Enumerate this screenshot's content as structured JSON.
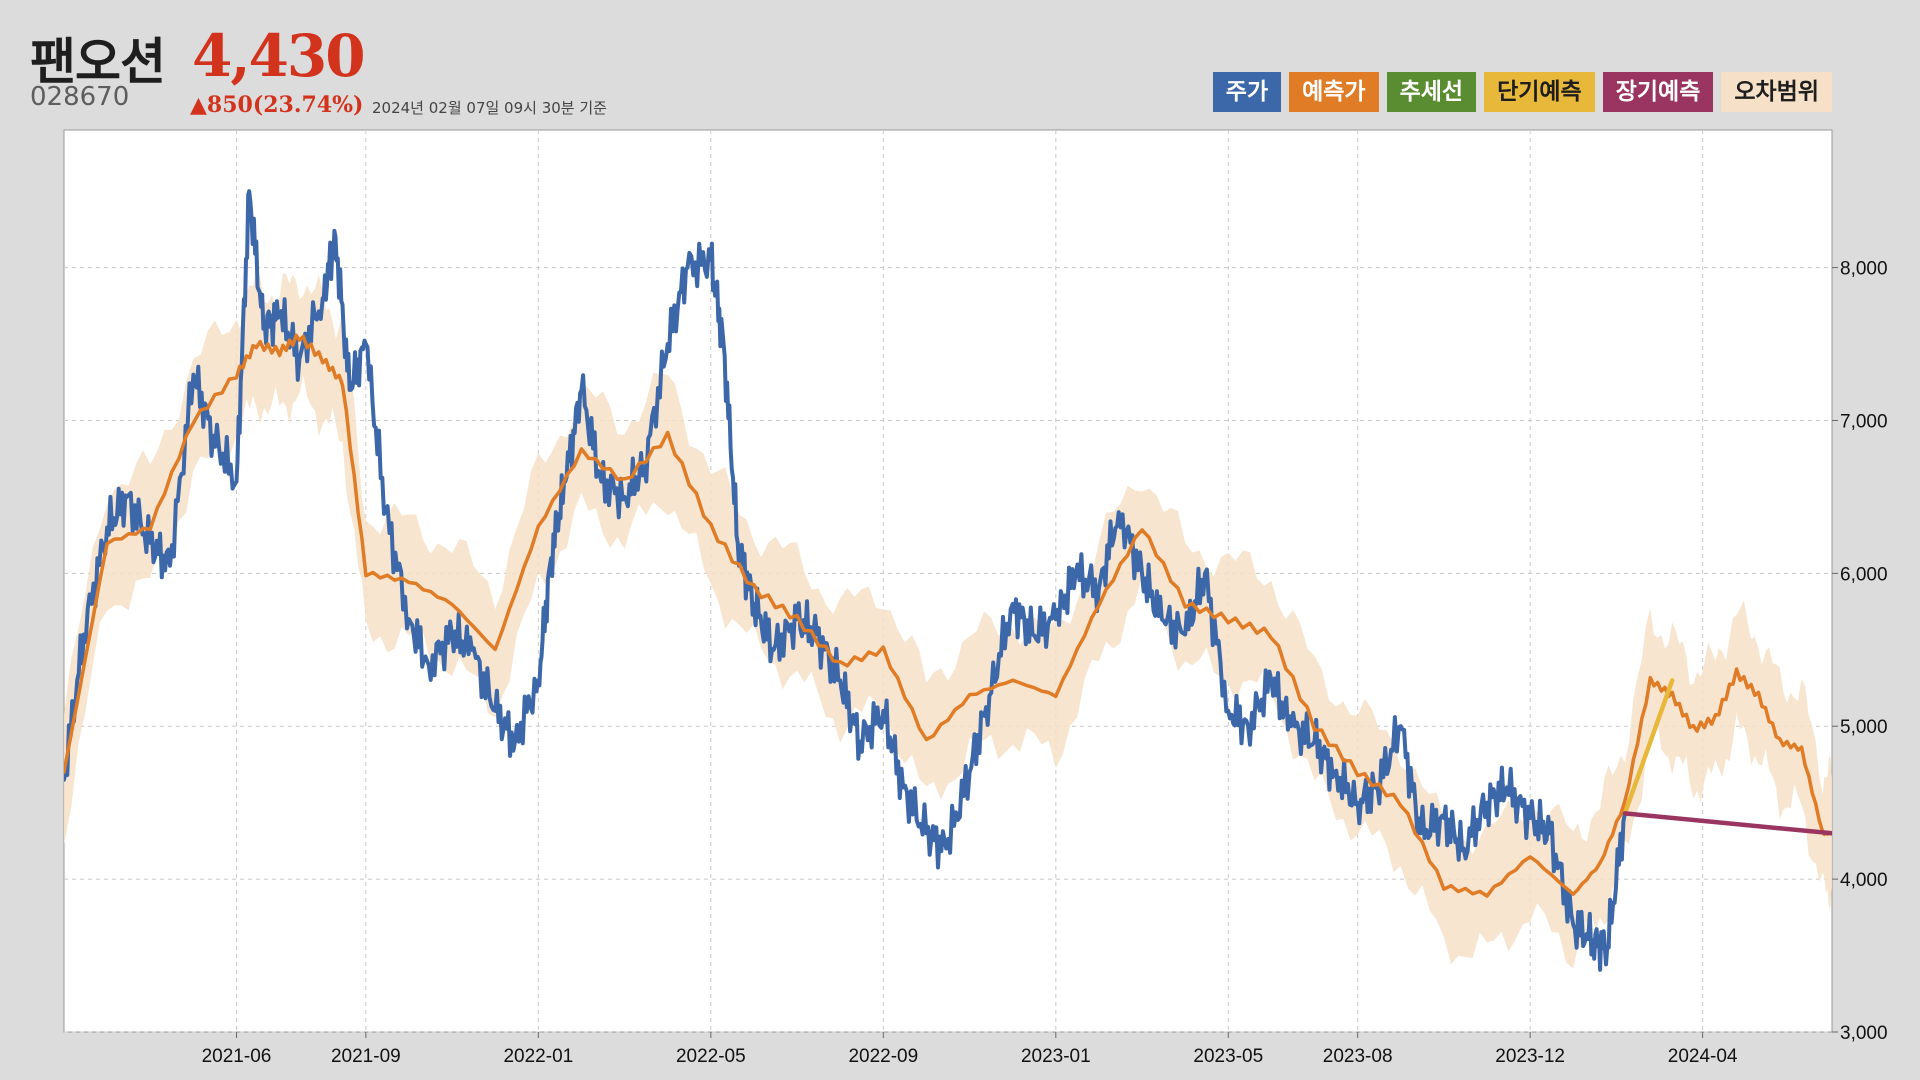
{
  "header": {
    "name": "팬오션",
    "price": "4,430",
    "code": "028670",
    "change": "▲850(23.74%)",
    "timestamp": "2024년 02월 07일 09시 30분 기준"
  },
  "legend": [
    {
      "label": "주가",
      "color": "#3c67a8",
      "text_color": "#ffffff"
    },
    {
      "label": "예측가",
      "color": "#e07b26",
      "text_color": "#ffffff"
    },
    {
      "label": "추세선",
      "color": "#5a8c32",
      "text_color": "#ffffff"
    },
    {
      "label": "단기예측",
      "color": "#e8b83a",
      "text_color": "#1e1e1e"
    },
    {
      "label": "장기예측",
      "color": "#9a3460",
      "text_color": "#ffffff"
    },
    {
      "label": "오차범위",
      "color": "#f6e0c8",
      "text_color": "#1e1e1e"
    }
  ],
  "chart_data": {
    "type": "line",
    "x_ticks": [
      "2021-06",
      "2021-09",
      "2022-01",
      "2022-05",
      "2022-09",
      "2023-01",
      "2023-05",
      "2023-08",
      "2023-12",
      "2024-04"
    ],
    "y_ticks": [
      "3,000",
      "4,000",
      "5,000",
      "6,000",
      "7,000",
      "8,000"
    ],
    "ylim": [
      3000,
      8900
    ],
    "x_range": [
      "2021-02",
      "2024-07"
    ],
    "grid": true,
    "series": [
      {
        "name": "주가",
        "color": "#3c67a8",
        "x": [
          "2021-02",
          "2021-02-15",
          "2021-03",
          "2021-03-15",
          "2021-04",
          "2021-04-15",
          "2021-05",
          "2021-05-15",
          "2021-06",
          "2021-06-10",
          "2021-06-20",
          "2021-07",
          "2021-07-15",
          "2021-08",
          "2021-08-10",
          "2021-08-20",
          "2021-09",
          "2021-09-15",
          "2021-10",
          "2021-10-15",
          "2021-11",
          "2021-11-15",
          "2021-12",
          "2021-12-15",
          "2022-01",
          "2022-01-10",
          "2022-01-20",
          "2022-02",
          "2022-02-15",
          "2022-03",
          "2022-03-15",
          "2022-04",
          "2022-04-15",
          "2022-05",
          "2022-05-10",
          "2022-05-20",
          "2022-06",
          "2022-06-15",
          "2022-07",
          "2022-07-15",
          "2022-08",
          "2022-08-15",
          "2022-09",
          "2022-09-15",
          "2022-10",
          "2022-10-15",
          "2022-11",
          "2022-11-15",
          "2022-12",
          "2022-12-15",
          "2023-01",
          "2023-01-15",
          "2023-02",
          "2023-02-15",
          "2023-03",
          "2023-03-15",
          "2023-04",
          "2023-04-15",
          "2023-05",
          "2023-05-15",
          "2023-06",
          "2023-06-15",
          "2023-07",
          "2023-07-15",
          "2023-08",
          "2023-08-15",
          "2023-09",
          "2023-09-15",
          "2023-10",
          "2023-10-15",
          "2023-11",
          "2023-11-15",
          "2023-12",
          "2023-12-15",
          "2024-01",
          "2024-01-15",
          "2024-01-25",
          "2024-02-07"
        ],
        "values": [
          4650,
          5600,
          6300,
          6500,
          6200,
          6050,
          7300,
          6900,
          6600,
          8500,
          7600,
          7700,
          7400,
          7800,
          8200,
          7200,
          7500,
          6400,
          5700,
          5400,
          5600,
          5500,
          5100,
          4900,
          5300,
          6100,
          6600,
          7200,
          6600,
          6500,
          6700,
          7500,
          8000,
          8050,
          7500,
          6200,
          5800,
          5500,
          5700,
          5600,
          5300,
          4900,
          5100,
          4600,
          4300,
          4200,
          4700,
          5200,
          5800,
          5600,
          5700,
          6000,
          5900,
          6400,
          6000,
          5700,
          5600,
          6000,
          5100,
          5000,
          5300,
          5000,
          4900,
          4700,
          4500,
          4600,
          5000,
          4300,
          4400,
          4200,
          4500,
          4600,
          4400,
          4300,
          3700,
          3600,
          3550,
          4430
        ]
      },
      {
        "name": "예측가",
        "color": "#e07b26",
        "x": [
          "2021-02",
          "2021-03",
          "2021-04",
          "2021-05",
          "2021-06",
          "2021-06-15",
          "2021-07",
          "2021-07-15",
          "2021-08",
          "2021-08-15",
          "2021-09",
          "2021-10",
          "2021-11",
          "2021-12",
          "2022-01",
          "2022-02",
          "2022-03",
          "2022-04",
          "2022-05",
          "2022-06",
          "2022-07",
          "2022-08",
          "2022-09",
          "2022-10",
          "2022-11",
          "2022-12",
          "2023-01",
          "2023-02",
          "2023-03",
          "2023-04",
          "2023-05",
          "2023-06",
          "2023-07",
          "2023-08",
          "2023-09",
          "2023-10",
          "2023-11",
          "2023-12",
          "2024-01",
          "2024-01-20",
          "2024-02-07",
          "2024-02-25",
          "2024-03-10",
          "2024-03-25",
          "2024-04-10",
          "2024-04-25",
          "2024-05-10",
          "2024-05-25",
          "2024-06-10",
          "2024-06-25",
          "2024-07"
        ],
        "values": [
          4700,
          6200,
          6300,
          7000,
          7300,
          7500,
          7450,
          7550,
          7400,
          7250,
          6000,
          5950,
          5800,
          5500,
          6300,
          6800,
          6600,
          6900,
          6300,
          5900,
          5700,
          5400,
          5500,
          4900,
          5200,
          5300,
          5200,
          5800,
          6300,
          5800,
          5700,
          5600,
          5000,
          4700,
          4500,
          3950,
          3900,
          4150,
          3900,
          4100,
          4500,
          5300,
          5200,
          4980,
          5050,
          5350,
          5200,
          4900,
          4850,
          4300,
          4300
        ]
      },
      {
        "name": "단기예측",
        "color": "#e8b83a",
        "x": [
          "2024-02-07",
          "2024-03-10"
        ],
        "values": [
          4430,
          5300
        ]
      },
      {
        "name": "장기예측",
        "color": "#9a3460",
        "x": [
          "2024-02-07",
          "2024-07"
        ],
        "values": [
          4430,
          4300
        ]
      }
    ]
  }
}
